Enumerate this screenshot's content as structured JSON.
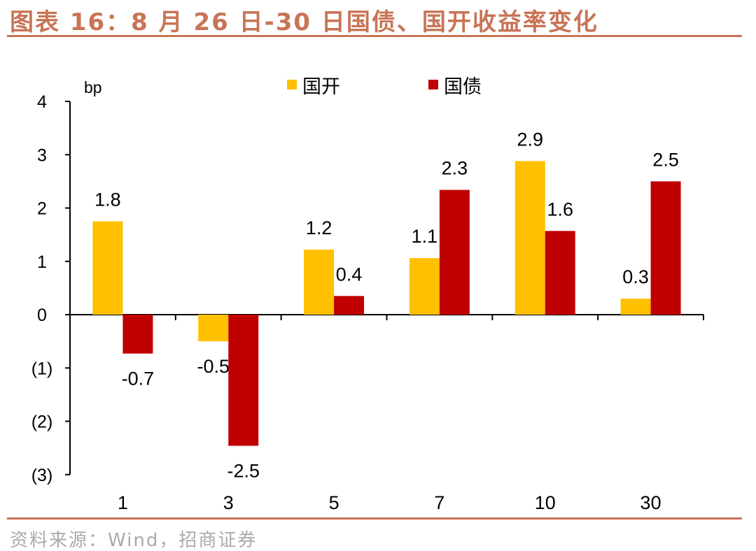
{
  "title": "图表 16：8 月 26 日-30 日国债、国开收益率变化",
  "source": "资料来源：Wind，招商证券",
  "chart_data": {
    "type": "bar",
    "unit_label": "bp",
    "categories": [
      "1",
      "3",
      "5",
      "7",
      "10",
      "30"
    ],
    "ylim": [
      -3,
      4
    ],
    "yticks": [
      4,
      3,
      2,
      1,
      0,
      -1,
      -2,
      -3
    ],
    "ytick_labels": [
      "4",
      "3",
      "2",
      "1",
      "0",
      "(1)",
      "(2)",
      "(3)"
    ],
    "grid": false,
    "legend_position": "top",
    "series": [
      {
        "name": "国开",
        "color": "#ffc000",
        "values": [
          1.75,
          -0.5,
          1.22,
          1.06,
          2.88,
          0.3
        ],
        "labels": [
          "1.8",
          "-0.5",
          "1.2",
          "1.1",
          "2.9",
          "0.3"
        ]
      },
      {
        "name": "国债",
        "color": "#c00000",
        "values": [
          -0.73,
          -2.46,
          0.35,
          2.34,
          1.57,
          2.5
        ],
        "labels": [
          "-0.7",
          "-2.5",
          "0.4",
          "2.3",
          "1.6",
          "2.5"
        ]
      }
    ]
  }
}
